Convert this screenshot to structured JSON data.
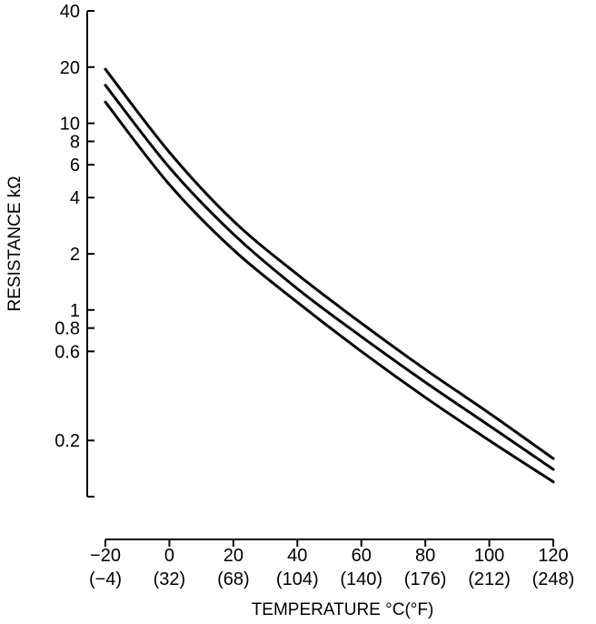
{
  "chart_data": {
    "type": "line",
    "title": "",
    "xlabel": "TEMPERATURE °C(°F)",
    "ylabel": "RESISTANCE kΩ",
    "y_scale": "log",
    "grid": false,
    "x_ticks": [
      {
        "value": -20,
        "label": "−20",
        "sublabel": "(−4)"
      },
      {
        "value": 0,
        "label": "0",
        "sublabel": "(32)"
      },
      {
        "value": 20,
        "label": "20",
        "sublabel": "(68)"
      },
      {
        "value": 40,
        "label": "40",
        "sublabel": "(104)"
      },
      {
        "value": 60,
        "label": "60",
        "sublabel": "(140)"
      },
      {
        "value": 80,
        "label": "80",
        "sublabel": "(176)"
      },
      {
        "value": 100,
        "label": "100",
        "sublabel": "(212)"
      },
      {
        "value": 120,
        "label": "120",
        "sublabel": "(248)"
      }
    ],
    "y_ticks": [
      {
        "value": 40,
        "label": "40"
      },
      {
        "value": 20,
        "label": "20"
      },
      {
        "value": 10,
        "label": "10"
      },
      {
        "value": 8,
        "label": "8"
      },
      {
        "value": 6,
        "label": "6"
      },
      {
        "value": 4,
        "label": "4"
      },
      {
        "value": 2,
        "label": "2"
      },
      {
        "value": 1,
        "label": "1"
      },
      {
        "value": 0.8,
        "label": "0.8"
      },
      {
        "value": 0.6,
        "label": "0.6"
      },
      {
        "value": 0.2,
        "label": "0.2"
      },
      {
        "value": 0.1,
        "label": ""
      }
    ],
    "xlim": [
      -20,
      120
    ],
    "ylim": [
      0.1,
      40
    ],
    "series": [
      {
        "x": [
          -20,
          0,
          20,
          40,
          60,
          80,
          100,
          120
        ],
        "values": [
          19.5,
          7.0,
          3.0,
          1.55,
          0.85,
          0.48,
          0.28,
          0.16
        ]
      },
      {
        "x": [
          -20,
          0,
          20,
          40,
          60,
          80,
          100,
          120
        ],
        "values": [
          16.0,
          5.8,
          2.55,
          1.3,
          0.72,
          0.41,
          0.24,
          0.14
        ]
      },
      {
        "x": [
          -20,
          0,
          20,
          40,
          60,
          80,
          100,
          120
        ],
        "values": [
          13.0,
          4.7,
          2.1,
          1.1,
          0.6,
          0.34,
          0.2,
          0.12
        ]
      }
    ]
  }
}
